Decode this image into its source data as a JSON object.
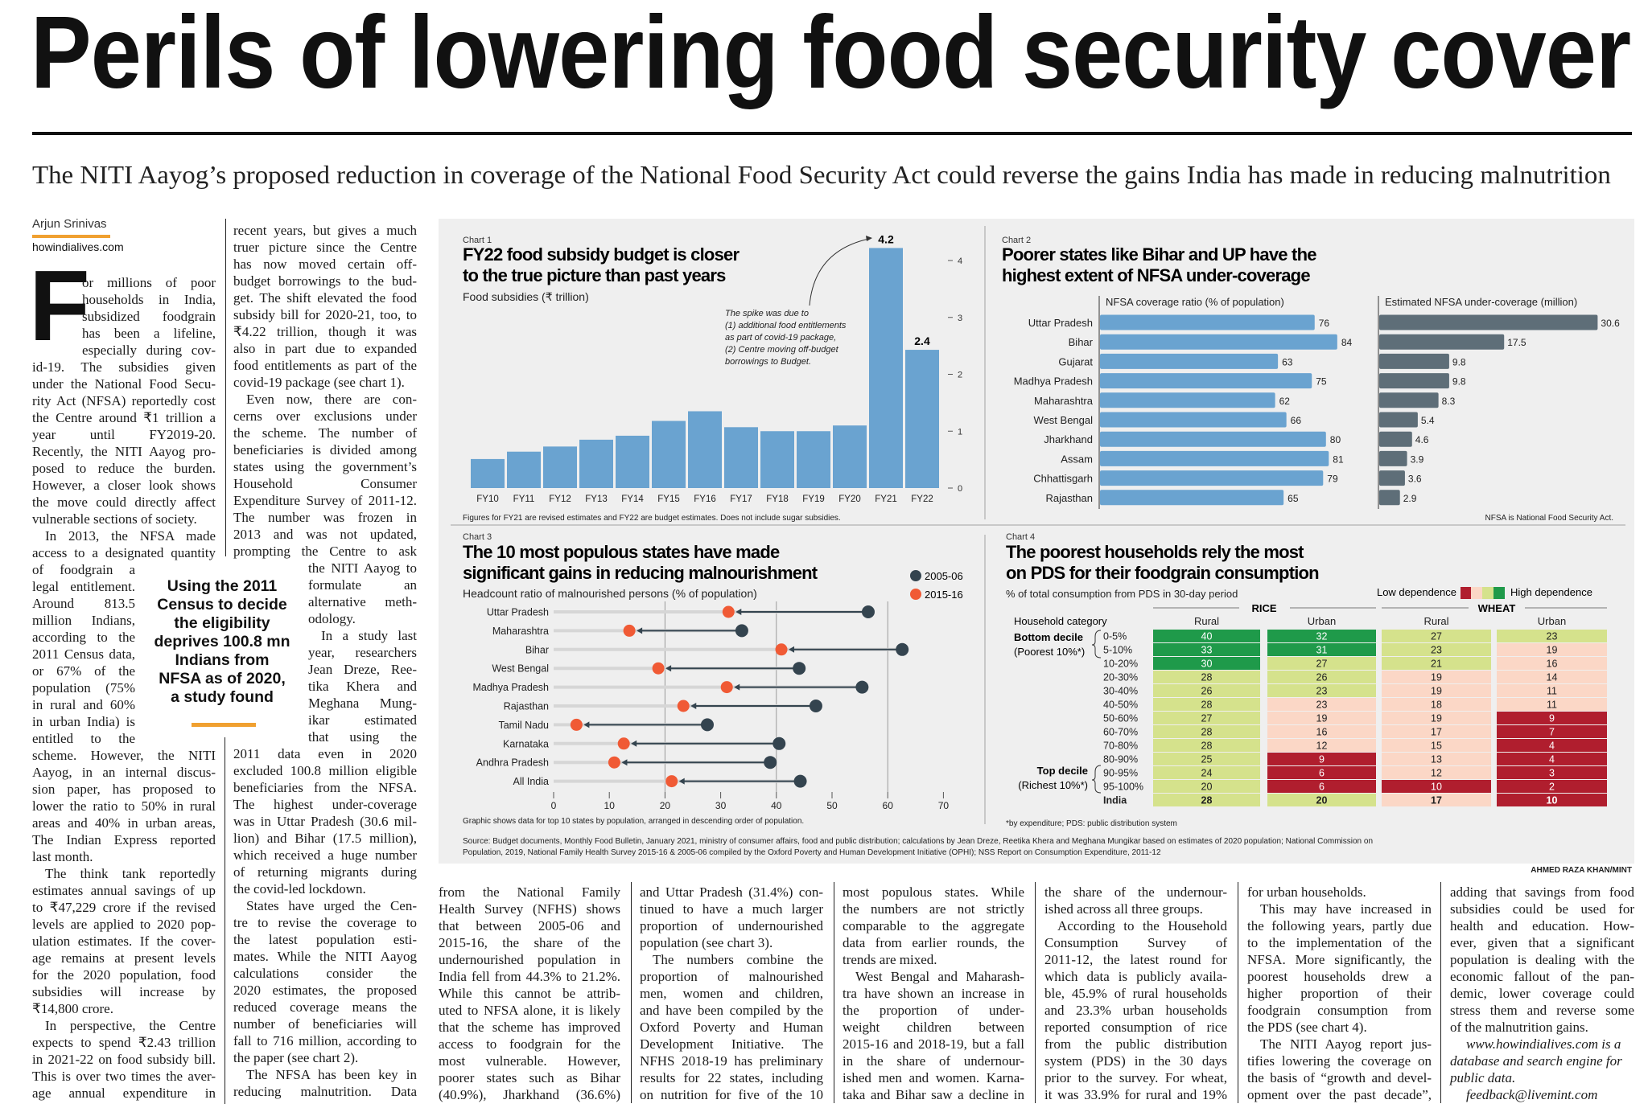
{
  "headline": "Perils of lowering food security cover",
  "dek": "The NITI Aayog’s proposed reduction in coverage of the National Food Security Act could reverse the gains India has made in reducing malnutrition",
  "byline": {
    "author": "Arjun Srinivas",
    "site": "howindialives.com"
  },
  "drop_cap": "F",
  "pull_quote": [
    "Using the 2011",
    "Census to decide",
    "the eligibility",
    "deprives 100.8 mn",
    "Indians from",
    "NFSA as of 2020,",
    "a study found"
  ],
  "columns": [
    [
      [
        "or millions of poor",
        "households in India,",
        "subsidized foodgrain",
        "has been a lifeline,",
        "especially during cov-",
        "id-19. The subsidies given",
        "under the National Food Secu-",
        "rity Act (NFSA) reportedly cost",
        "the Centre around ₹1 trillion a",
        "year until FY2019-20.",
        "Recently, the NITI Aayog pro-",
        "posed to reduce the burden.",
        "However, a closer look shows",
        "the move could directly affect",
        "vulnerable sections of society."
      ],
      [
        "In 2013, the NFSA made",
        "access to a designated quantity",
        "of foodgrain a",
        "legal entitlement.",
        "Around 813.5",
        "million Indians,",
        "according to the",
        "2011 Census data,",
        "or 67% of the",
        "population (75%",
        "in rural and 60%",
        "in urban India) is",
        "entitled to the",
        "scheme. However, the NITI",
        "Aayog, in an internal discus-",
        "sion paper, has proposed to",
        "lower the ratio to 50% in rural",
        "areas and 40% in urban areas,",
        "The Indian Express reported",
        "last month."
      ],
      [
        "The think tank reportedly",
        "estimates annual savings of up",
        "to ₹47,229 crore if the revised",
        "levels are applied to 2020 pop-",
        "ulation estimates. If the cover-",
        "age remains at present levels",
        "for the 2020 population, food",
        "subsidies will increase by",
        "₹14,800 crore."
      ],
      [
        "In perspective, the Centre",
        "expects to spend ₹2.43 trillion",
        "in 2021-22 on food subsidy bill.",
        "This is over two times the aver-",
        "age annual expenditure in"
      ]
    ],
    [
      [
        "recent years, but gives a much",
        "truer picture since the Centre",
        "has now moved certain off-",
        "budget borrowings to the bud-",
        "get. The shift elevated the food",
        "subsidy bill for 2020-21, too, to",
        "₹4.22 trillion, though it was",
        "also in part due to expanded",
        "food entitlements as part of the",
        "covid-19 package (see chart 1)."
      ],
      [
        "Even now, there are con-",
        "cerns over exclusions under",
        "the scheme. The number of",
        "beneficiaries is divided among",
        "states using the government’s",
        "Household Consumer",
        "Expenditure Survey of 2011-12.",
        "The number was frozen in",
        "2013 and was not updated,",
        "prompting the Centre to ask",
        "the NITI Aayog to",
        "formulate an",
        "alternative meth-",
        "odology."
      ],
      [
        "In a study last",
        "year, researchers",
        "Jean Dreze, Ree-",
        "tika Khera and",
        "Meghana Mung-",
        "ikar estimated",
        "that using the",
        "2011 data even in 2020",
        "excluded 100.8 million eligible",
        "beneficiaries from the NFSA.",
        "The highest under-coverage",
        "was in Uttar Pradesh (30.6 mil-",
        "lion) and Bihar (17.5 million),",
        "which received a huge number",
        "of returning migrants during",
        "the covid-led lockdown."
      ],
      [
        "States have urged the Cen-",
        "tre to revise the coverage to",
        "the latest population esti-",
        "mates. While the NITI Aayog",
        "calculations consider the",
        "2020 estimates, the proposed",
        "reduced coverage means the",
        "number of beneficiaries will",
        "fall to 716 million, according to",
        "the paper (see chart 2)."
      ],
      [
        "The NFSA has been key in",
        "reducing malnutrition. Data"
      ]
    ],
    [
      [
        "from the National Family",
        "Health Survey (NFHS) shows",
        "that between 2005-06 and",
        "2015-16, the share of the",
        "undernourished population in",
        "India fell from 44.3% to 21.2%.",
        "While this cannot be attrib-",
        "uted to NFSA alone, it is likely",
        "that the scheme has improved",
        "access to foodgrain for the",
        "most vulnerable. However,",
        "poorer states such as Bihar",
        "(40.9%), Jharkhand (36.6%)"
      ]
    ],
    [
      [
        "and Uttar Pradesh (31.4%) con-",
        "tinued to have a much larger",
        "proportion of undernourished",
        "population (see chart 3)."
      ],
      [
        "The numbers combine the",
        "proportion of malnourished",
        "men, women and children,",
        "and have been compiled by the",
        "Oxford Poverty and Human",
        "Development Initiative. The",
        "NFHS 2018-19 has preliminary",
        "results for 22 states, including",
        "on nutrition for five of the 10"
      ]
    ],
    [
      [
        "most populous states. While",
        "the numbers are not strictly",
        "comparable to the aggregate",
        "data from earlier rounds, the",
        "trends are mixed."
      ],
      [
        "West Bengal and Maharash-",
        "tra have shown an increase in",
        "the proportion of under-",
        "weight children between",
        "2015-16 and 2018-19, but a fall",
        "in the share of undernour-",
        "ished men and women. Karna-",
        "taka and Bihar saw a decline in"
      ]
    ],
    [
      [
        "the share of the undernour-",
        "ished across all three groups."
      ],
      [
        "According to the Household",
        "Consumption Survey of",
        "2011-12, the latest round for",
        "which data is publicly availa-",
        "ble, 45.9% of rural households",
        "and 23.3% urban households",
        "reported consumption of rice",
        "from the public distribution",
        "system (PDS) in the 30 days",
        "prior to the survey. For wheat,",
        "it was 33.9% for rural and 19%"
      ]
    ],
    [
      [
        "for urban households."
      ],
      [
        "This may have increased in",
        "the following years, partly due",
        "to the implementation of the",
        "NFSA. More significantly, the",
        "poorest households drew a",
        "higher proportion of their",
        "foodgrain consumption from",
        "the PDS (see chart 4)."
      ],
      [
        "The NITI Aayog report jus-",
        "tifies lowering the coverage on",
        "the basis of “growth and devel-",
        "opment over the past decade”,"
      ]
    ],
    [
      [
        "adding that savings from food",
        "subsidies could be used for",
        "health and education. How-",
        "ever, given that a significant",
        "population is dealing with the",
        "economic fallout of the pan-",
        "demic, lower coverage could",
        "stress them and reverse some",
        "of the malnutrition gains."
      ],
      [
        "www.howindialives.com is a",
        "database and search engine for",
        "public data."
      ],
      [
        "feedback@livemint.com"
      ]
    ]
  ],
  "colors": {
    "accent": "#f0a030",
    "bar_blue": "#6aa3d0",
    "bar_slate": "#5e6e78",
    "dot_2005": "#34444f",
    "dot_2015": "#f05a35",
    "dep_high": "#1f9a4a",
    "dep_mid": "#d5e28c",
    "dep_low": "#fbd7c6",
    "dep_lowest": "#b01e2e",
    "panel_bg": "#efefef"
  },
  "chart_data": [
    {
      "type": "bar",
      "label": "Chart 1",
      "title": "FY22 food subsidy budget is closer to the true picture than past years",
      "title_lines": [
        "FY22 food subsidy budget is closer",
        "to the true picture than past years"
      ],
      "ylabel": "Food subsidies (₹ trillion)",
      "categories": [
        "FY10",
        "FY11",
        "FY12",
        "FY13",
        "FY14",
        "FY15",
        "FY16",
        "FY17",
        "FY18",
        "FY19",
        "FY20",
        "FY21",
        "FY22"
      ],
      "values": [
        0.51,
        0.64,
        0.73,
        0.85,
        0.92,
        1.18,
        1.35,
        1.07,
        1.0,
        1.0,
        1.1,
        4.22,
        2.43
      ],
      "data_labels": {
        "FY21": "4.2",
        "FY22": "2.4"
      },
      "ylim": [
        0,
        4.2
      ],
      "yticks": [
        "0",
        "1",
        "2",
        "3",
        "4"
      ],
      "y_axis_side": "right",
      "annotation": [
        "The spike was due to",
        "(1) additional food entitlements",
        "as part of covid-19 package,",
        "(2) Centre moving off-budget",
        "borrowings to Budget."
      ],
      "footnote": "Figures for FY21 are revised estimates and FY22 are budget estimates. Does not include sugar subsidies."
    },
    {
      "type": "bar",
      "orientation": "horizontal",
      "label": "Chart 2",
      "title_lines": [
        "Poorer states like Bihar and UP have the",
        "highest extent of NFSA under-coverage"
      ],
      "categories": [
        "Uttar Pradesh",
        "Bihar",
        "Gujarat",
        "Madhya Pradesh",
        "Maharashtra",
        "West Bengal",
        "Jharkhand",
        "Assam",
        "Chhattisgarh",
        "Rajasthan"
      ],
      "series": [
        {
          "name": "NFSA coverage ratio (% of population)",
          "values": [
            76,
            84,
            63,
            75,
            62,
            66,
            80,
            81,
            79,
            65
          ],
          "labels": [
            "76",
            "84",
            "63",
            "75",
            "62",
            "66",
            "80",
            "81",
            "79",
            "65"
          ]
        },
        {
          "name": "Estimated NFSA under-coverage (million)",
          "values": [
            30.6,
            17.5,
            9.8,
            9.8,
            8.3,
            5.4,
            4.6,
            3.9,
            3.6,
            2.9
          ],
          "labels": [
            "30.6",
            "17.5",
            "9.8",
            "9.8",
            "8.3",
            "5.4",
            "4.6",
            "3.9",
            "3.6",
            "2.9"
          ]
        }
      ],
      "footnote": "NFSA is National Food Security Act."
    },
    {
      "type": "scatter",
      "style": "dumbbell",
      "label": "Chart 3",
      "title_lines": [
        "The 10 most populous states have made",
        "significant gains in reducing malnourishment"
      ],
      "xlabel": "Headcount ratio of malnourished persons (% of population)",
      "categories": [
        "Uttar Pradesh",
        "Maharashtra",
        "Bihar",
        "West Bengal",
        "Madhya Pradesh",
        "Rajasthan",
        "Tamil Nadu",
        "Karnataka",
        "Andhra Pradesh",
        "All India"
      ],
      "series": [
        {
          "name": "2005-06",
          "values": [
            56.5,
            33.8,
            62.6,
            44.1,
            55.4,
            47.1,
            27.6,
            40.5,
            38.9,
            44.3
          ]
        },
        {
          "name": "2015-16",
          "values": [
            31.4,
            13.6,
            40.9,
            18.8,
            31.1,
            23.3,
            4.1,
            12.6,
            10.9,
            21.2
          ]
        }
      ],
      "xlim": [
        0,
        70
      ],
      "xticks": [
        "0",
        "10",
        "20",
        "30",
        "40",
        "50",
        "60",
        "70"
      ],
      "legend": "top-right",
      "footnote": "Graphic shows data for top 10 states by population, arranged in descending order of population."
    },
    {
      "type": "heatmap",
      "label": "Chart 4",
      "title_lines": [
        "The poorest households rely the most",
        "on PDS for their foodgrain consumption"
      ],
      "subtitle": "% of total consumption from PDS in 30-day period",
      "legend": {
        "low": "Low dependence",
        "high": "High dependence"
      },
      "row_header": "Household category",
      "groups": [
        "RICE",
        "WHEAT"
      ],
      "columns": [
        "Rural",
        "Urban",
        "Rural",
        "Urban"
      ],
      "group_labels": [
        {
          "title": "Bottom decile",
          "note": "(Poorest 10%*)"
        },
        {
          "title": "Top decile",
          "note": "(Richest 10%*)"
        }
      ],
      "rows": [
        "0-5%",
        "5-10%",
        "10-20%",
        "20-30%",
        "30-40%",
        "40-50%",
        "50-60%",
        "60-70%",
        "70-80%",
        "80-90%",
        "90-95%",
        "95-100%",
        "India"
      ],
      "values": [
        [
          40,
          32,
          27,
          23
        ],
        [
          33,
          31,
          23,
          19
        ],
        [
          30,
          27,
          21,
          16
        ],
        [
          28,
          26,
          19,
          14
        ],
        [
          26,
          23,
          19,
          11
        ],
        [
          28,
          23,
          18,
          11
        ],
        [
          27,
          19,
          19,
          9
        ],
        [
          28,
          16,
          17,
          7
        ],
        [
          28,
          12,
          15,
          4
        ],
        [
          25,
          9,
          13,
          4
        ],
        [
          24,
          6,
          12,
          3
        ],
        [
          20,
          6,
          10,
          2
        ],
        [
          28,
          20,
          17,
          10
        ]
      ],
      "dependence_levels": [
        [
          4,
          4,
          3,
          3
        ],
        [
          4,
          4,
          3,
          2
        ],
        [
          4,
          3,
          3,
          2
        ],
        [
          3,
          3,
          2,
          2
        ],
        [
          3,
          3,
          2,
          2
        ],
        [
          3,
          2,
          2,
          2
        ],
        [
          3,
          2,
          2,
          1
        ],
        [
          3,
          2,
          2,
          1
        ],
        [
          3,
          2,
          2,
          1
        ],
        [
          3,
          1,
          2,
          1
        ],
        [
          3,
          1,
          2,
          1
        ],
        [
          3,
          1,
          1,
          1
        ],
        [
          3,
          3,
          2,
          1
        ]
      ],
      "footnote": "*by expenditure; PDS: public distribution system"
    }
  ],
  "source": [
    "Source: Budget documents, Monthly Food Bulletin, January 2021, ministry of consumer affairs, food and public distribution; calculations by Jean Dreze, Reetika Khera and Meghana Mungikar based on estimates of 2020 population; National Commission on",
    "Population, 2019, National Family Health Survey 2015-16 & 2005-06 compiled by the Oxford Poverty and Human Development Initiative (OPHI); NSS Report on Consumption Expenditure, 2011-12"
  ],
  "credit": "AHMED RAZA KHAN/MINT"
}
